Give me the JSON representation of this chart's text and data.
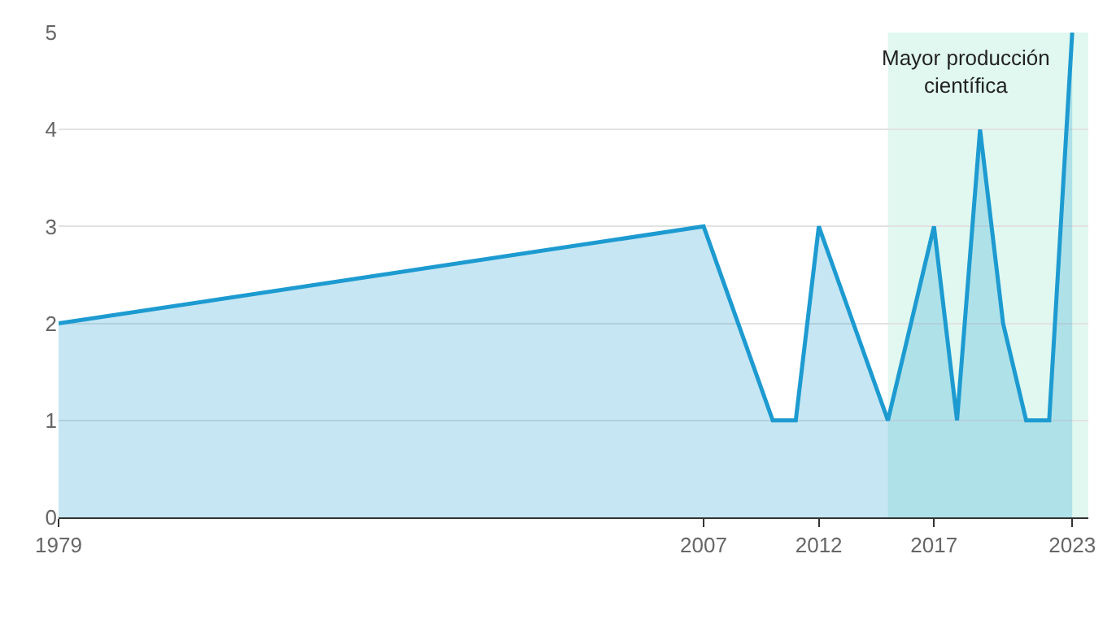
{
  "chart_data": {
    "type": "area",
    "x": [
      1979,
      2007,
      2010,
      2011,
      2012,
      2015,
      2017,
      2018,
      2019,
      2020,
      2021,
      2022,
      2023
    ],
    "series": [
      {
        "color": "#1d9bd1",
        "values": [
          2,
          3,
          1,
          1,
          3,
          1,
          3,
          1,
          4,
          2,
          1,
          1,
          5
        ]
      }
    ],
    "xlim": [
      1979,
      2023.7
    ],
    "xticks": [
      1979,
      2007,
      2012,
      2017,
      2023
    ],
    "ylim": [
      0,
      5
    ],
    "yticks": [
      0,
      1,
      2,
      3,
      4,
      5
    ],
    "grid": "y",
    "legend": false,
    "bands": [
      {
        "axis": "x",
        "from": 2015,
        "to": 2023.7,
        "label": "Mayor producción\ncientífica",
        "color": "#e0f8f0"
      }
    ]
  }
}
